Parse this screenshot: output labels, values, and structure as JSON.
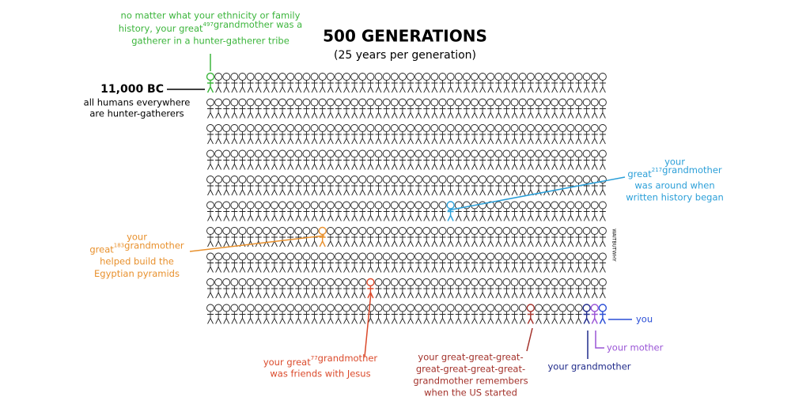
{
  "title": "500 GENERATIONS",
  "subtitle": "(25 years per generation)",
  "start": {
    "label": "11,000 BC",
    "note": [
      "all humans everywhere",
      "are hunter-gatherers"
    ]
  },
  "annotations": [
    {
      "color": "#3cb53c",
      "lines": [
        "no matter what your ethnicity or family",
        [
          "history, your great",
          {
            "sup": "497"
          },
          "grandmother was a"
        ],
        "gatherer in a hunter-gatherer tribe"
      ]
    },
    {
      "color": "#2b9fd8",
      "lines": [
        "your",
        [
          "great",
          {
            "sup": "217"
          },
          "grandmother"
        ],
        "was around when",
        "written history began"
      ]
    },
    {
      "color": "#e8902c",
      "lines": [
        "your",
        [
          "great",
          {
            "sup": "183"
          },
          "grandmother"
        ],
        "helped build the",
        "Egyptian pyramids"
      ]
    },
    {
      "color": "#db4a2b",
      "lines": [
        [
          "your great",
          {
            "sup": "77"
          },
          "grandmother"
        ],
        "was friends with Jesus"
      ]
    },
    {
      "color": "#a3322b",
      "lines": [
        "your great-great-great-",
        "great-great-great-great-",
        "grandmother remembers",
        "when the US started"
      ]
    },
    {
      "color": "#1f2a8a",
      "lines": [
        "your grandmother"
      ]
    },
    {
      "color": "#9a55d6",
      "lines": [
        "your mother"
      ]
    },
    {
      "color": "#2a4ed6",
      "lines": [
        "you"
      ]
    }
  ],
  "signature": "WAITBUTWHY"
}
